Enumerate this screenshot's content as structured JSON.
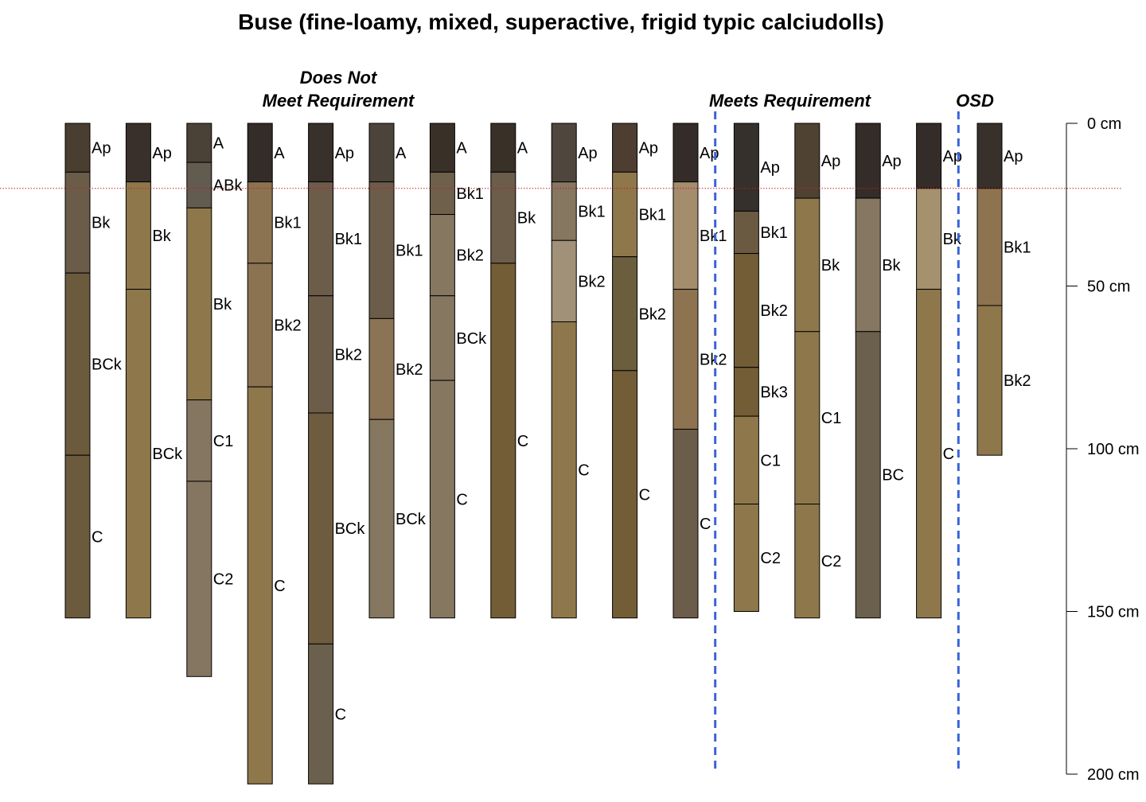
{
  "title": "Buse (fine-loamy, mixed, superactive, frigid typic calciudolls)",
  "groups": {
    "does_not_meet": "Does Not\nMeet Requirement",
    "meets": "Meets Requirement",
    "osd": "OSD"
  },
  "chart_data": {
    "type": "soil-profile-sketch",
    "title": "Buse (fine-loamy, mixed, superactive, frigid typic calciudolls)",
    "depth_axis": {
      "unit": "cm",
      "range": [
        0,
        200
      ],
      "ticks": [
        0,
        50,
        100,
        150,
        200
      ],
      "tick_labels": [
        "0 cm",
        "50 cm",
        "100 cm",
        "150 cm",
        "200 cm"
      ],
      "position": "right"
    },
    "reference_depth": 20,
    "group_dividers_after_profile": [
      11,
      15
    ],
    "profiles": [
      {
        "horizons": [
          {
            "name": "Ap",
            "top": 0,
            "bottom": 15,
            "color": "#4a3e30"
          },
          {
            "name": "Bk",
            "top": 15,
            "bottom": 46,
            "color": "#6a5c49"
          },
          {
            "name": "BCk",
            "top": 46,
            "bottom": 102,
            "color": "#6b5a3c"
          },
          {
            "name": "C",
            "top": 102,
            "bottom": 152,
            "color": "#6b5a3c"
          }
        ]
      },
      {
        "horizons": [
          {
            "name": "Ap",
            "top": 0,
            "bottom": 18,
            "color": "#3a302b"
          },
          {
            "name": "Bk",
            "top": 18,
            "bottom": 51,
            "color": "#8e774b"
          },
          {
            "name": "BCk",
            "top": 51,
            "bottom": 152,
            "color": "#8e774b"
          }
        ]
      },
      {
        "horizons": [
          {
            "name": "A",
            "top": 0,
            "bottom": 12,
            "color": "#4a4237"
          },
          {
            "name": "ABk",
            "top": 12,
            "bottom": 26,
            "color": "#625b4f"
          },
          {
            "name": "Bk",
            "top": 26,
            "bottom": 85,
            "color": "#8e774b"
          },
          {
            "name": "C1",
            "top": 85,
            "bottom": 110,
            "color": "#857661"
          },
          {
            "name": "C2",
            "top": 110,
            "bottom": 170,
            "color": "#857661"
          }
        ]
      },
      {
        "horizons": [
          {
            "name": "A",
            "top": 0,
            "bottom": 18,
            "color": "#342c28"
          },
          {
            "name": "Bk1",
            "top": 18,
            "bottom": 43,
            "color": "#8b7352"
          },
          {
            "name": "Bk2",
            "top": 43,
            "bottom": 81,
            "color": "#8b7352"
          },
          {
            "name": "C",
            "top": 81,
            "bottom": 203,
            "color": "#8e774b"
          }
        ]
      },
      {
        "horizons": [
          {
            "name": "Ap",
            "top": 0,
            "bottom": 18,
            "color": "#37302b"
          },
          {
            "name": "Bk1",
            "top": 18,
            "bottom": 53,
            "color": "#6c5c4a"
          },
          {
            "name": "Bk2",
            "top": 53,
            "bottom": 89,
            "color": "#6c5c4a"
          },
          {
            "name": "BCk",
            "top": 89,
            "bottom": 160,
            "color": "#6e5c3f"
          },
          {
            "name": "C",
            "top": 160,
            "bottom": 203,
            "color": "#6b604d"
          }
        ]
      },
      {
        "horizons": [
          {
            "name": "A",
            "top": 0,
            "bottom": 18,
            "color": "#4c443b"
          },
          {
            "name": "Bk1",
            "top": 18,
            "bottom": 60,
            "color": "#6c5c4a"
          },
          {
            "name": "Bk2",
            "top": 60,
            "bottom": 91,
            "color": "#8b7355"
          },
          {
            "name": "BCk",
            "top": 91,
            "bottom": 152,
            "color": "#857760"
          }
        ]
      },
      {
        "horizons": [
          {
            "name": "A",
            "top": 0,
            "bottom": 15,
            "color": "#393028"
          },
          {
            "name": "Bk1",
            "top": 15,
            "bottom": 28,
            "color": "#6e604b"
          },
          {
            "name": "Bk2",
            "top": 28,
            "bottom": 53,
            "color": "#857760"
          },
          {
            "name": "BCk",
            "top": 53,
            "bottom": 79,
            "color": "#857760"
          },
          {
            "name": "C",
            "top": 79,
            "bottom": 152,
            "color": "#857760"
          }
        ]
      },
      {
        "horizons": [
          {
            "name": "A",
            "top": 0,
            "bottom": 15,
            "color": "#393028"
          },
          {
            "name": "Bk",
            "top": 15,
            "bottom": 43,
            "color": "#6c5c4a"
          },
          {
            "name": "C",
            "top": 43,
            "bottom": 152,
            "color": "#735d36"
          }
        ]
      },
      {
        "horizons": [
          {
            "name": "Ap",
            "top": 0,
            "bottom": 18,
            "color": "#4f463e"
          },
          {
            "name": "Bk1",
            "top": 18,
            "bottom": 36,
            "color": "#857760"
          },
          {
            "name": "Bk2",
            "top": 36,
            "bottom": 61,
            "color": "#a19178"
          },
          {
            "name": "C",
            "top": 61,
            "bottom": 152,
            "color": "#8e774b"
          }
        ]
      },
      {
        "horizons": [
          {
            "name": "Ap",
            "top": 0,
            "bottom": 15,
            "color": "#4d3e31"
          },
          {
            "name": "Bk1",
            "top": 15,
            "bottom": 41,
            "color": "#8e774b"
          },
          {
            "name": "Bk2",
            "top": 41,
            "bottom": 76,
            "color": "#6b5e3c"
          },
          {
            "name": "C",
            "top": 76,
            "bottom": 152,
            "color": "#735d36"
          }
        ]
      },
      {
        "horizons": [
          {
            "name": "Ap",
            "top": 0,
            "bottom": 18,
            "color": "#342c28"
          },
          {
            "name": "Bk1",
            "top": 18,
            "bottom": 51,
            "color": "#a38d6c"
          },
          {
            "name": "Bk2",
            "top": 51,
            "bottom": 94,
            "color": "#8e7350"
          },
          {
            "name": "C",
            "top": 94,
            "bottom": 152,
            "color": "#6c5c4a"
          }
        ]
      },
      {
        "horizons": [
          {
            "name": "Ap",
            "top": 0,
            "bottom": 27,
            "color": "#35302b"
          },
          {
            "name": "Bk1",
            "top": 27,
            "bottom": 40,
            "color": "#6b5a42"
          },
          {
            "name": "Bk2",
            "top": 40,
            "bottom": 75,
            "color": "#735d36"
          },
          {
            "name": "Bk3",
            "top": 75,
            "bottom": 90,
            "color": "#735d36"
          },
          {
            "name": "C1",
            "top": 90,
            "bottom": 117,
            "color": "#8e774b"
          },
          {
            "name": "C2",
            "top": 117,
            "bottom": 150,
            "color": "#8e774b"
          }
        ]
      },
      {
        "horizons": [
          {
            "name": "Ap",
            "top": 0,
            "bottom": 23,
            "color": "#4f4233"
          },
          {
            "name": "Bk",
            "top": 23,
            "bottom": 64,
            "color": "#8e774b"
          },
          {
            "name": "C1",
            "top": 64,
            "bottom": 117,
            "color": "#8e774b"
          },
          {
            "name": "C2",
            "top": 117,
            "bottom": 152,
            "color": "#8e774b"
          }
        ]
      },
      {
        "horizons": [
          {
            "name": "Ap",
            "top": 0,
            "bottom": 23,
            "color": "#342c28"
          },
          {
            "name": "Bk",
            "top": 23,
            "bottom": 64,
            "color": "#857761"
          },
          {
            "name": "BC",
            "top": 64,
            "bottom": 152,
            "color": "#6b604d"
          }
        ]
      },
      {
        "horizons": [
          {
            "name": "Ap",
            "top": 0,
            "bottom": 20,
            "color": "#342c28"
          },
          {
            "name": "Bk",
            "top": 20,
            "bottom": 51,
            "color": "#a4916e"
          },
          {
            "name": "C",
            "top": 51,
            "bottom": 152,
            "color": "#8e774b"
          }
        ]
      },
      {
        "horizons": [
          {
            "name": "Ap",
            "top": 0,
            "bottom": 20,
            "color": "#37302b"
          },
          {
            "name": "Bk1",
            "top": 20,
            "bottom": 56,
            "color": "#8e7350"
          },
          {
            "name": "Bk2",
            "top": 56,
            "bottom": 102,
            "color": "#8e774b"
          }
        ]
      }
    ]
  }
}
